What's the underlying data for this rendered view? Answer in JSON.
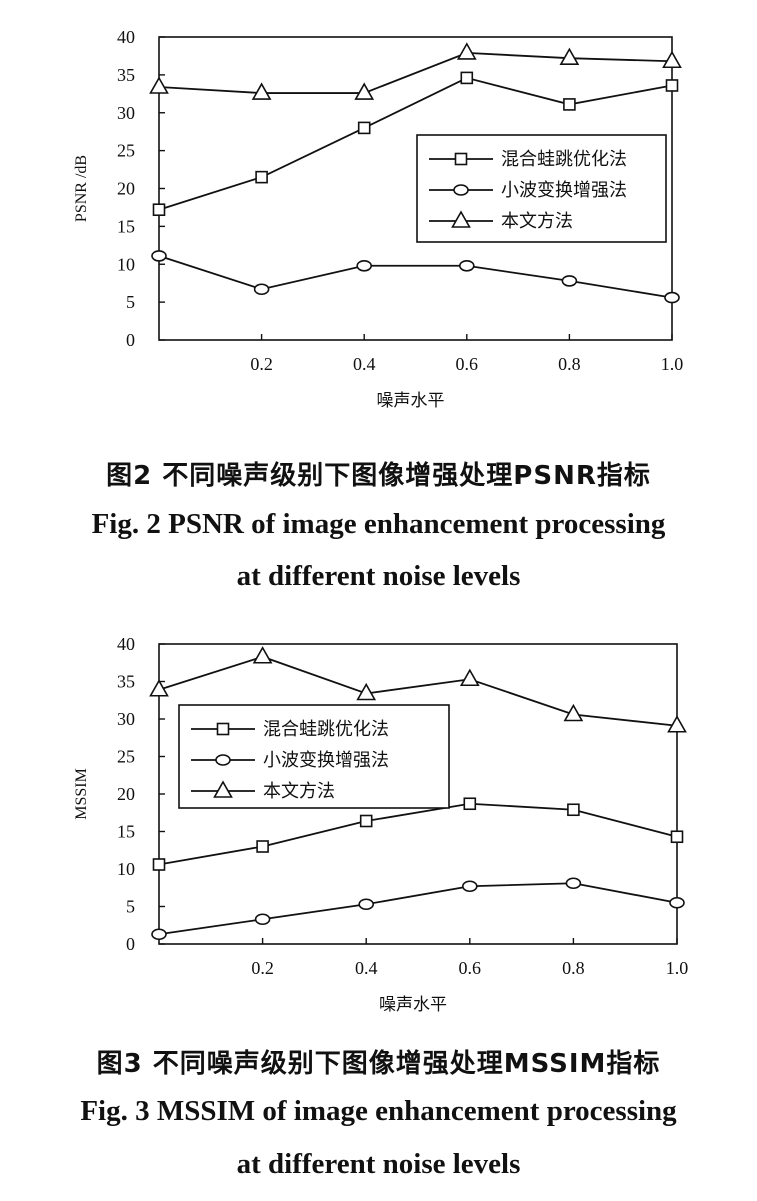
{
  "captions": {
    "fig2_cn": "图2  不同噪声级别下图像增强处理PSNR指标",
    "fig2_en_1": "Fig. 2  PSNR of image enhancement processing",
    "fig2_en_2": "at different noise levels",
    "fig3_cn": "图3  不同噪声级别下图像增强处理MSSIM指标",
    "fig3_en_1": "Fig. 3  MSSIM of image enhancement processing",
    "fig3_en_2": "at different noise levels"
  },
  "chart_data": [
    {
      "type": "line",
      "xlabel": "噪声水平",
      "ylabel": "PSNR /dB",
      "xlim": [
        0,
        1.0
      ],
      "ylim": [
        0,
        40
      ],
      "x_ticks": [
        "0.2",
        "0.4",
        "0.6",
        "0.8",
        "1.0"
      ],
      "y_ticks": [
        "0",
        "5",
        "10",
        "15",
        "20",
        "25",
        "30",
        "35",
        "40"
      ],
      "x": [
        0,
        0.2,
        0.4,
        0.6,
        0.8,
        1.0
      ],
      "legend_position": "right",
      "grid": false,
      "series": [
        {
          "name": "混合蛙跳优化法",
          "marker": "square",
          "values": [
            17.2,
            21.5,
            28.0,
            34.6,
            31.1,
            33.6
          ]
        },
        {
          "name": "小波变换增强法",
          "marker": "circle",
          "values": [
            11.1,
            6.7,
            9.8,
            9.8,
            7.8,
            5.6
          ]
        },
        {
          "name": "本文方法",
          "marker": "triangle",
          "values": [
            33.4,
            32.6,
            32.6,
            37.9,
            37.2,
            36.8
          ]
        }
      ]
    },
    {
      "type": "line",
      "xlabel": "噪声水平",
      "ylabel": "MSSIM",
      "xlim": [
        0,
        1.0
      ],
      "ylim": [
        0,
        40
      ],
      "x_ticks": [
        "0.2",
        "0.4",
        "0.6",
        "0.8",
        "1.0"
      ],
      "y_ticks": [
        "0",
        "5",
        "10",
        "15",
        "20",
        "25",
        "30",
        "35",
        "40"
      ],
      "x": [
        0,
        0.2,
        0.4,
        0.6,
        0.8,
        1.0
      ],
      "legend_position": "left",
      "grid": false,
      "series": [
        {
          "name": "混合蛙跳优化法",
          "marker": "square",
          "values": [
            10.6,
            13.0,
            16.4,
            18.7,
            17.9,
            14.3
          ]
        },
        {
          "name": "小波变换增强法",
          "marker": "circle",
          "values": [
            1.3,
            3.3,
            5.3,
            7.7,
            8.1,
            5.5
          ]
        },
        {
          "name": "本文方法",
          "marker": "triangle",
          "values": [
            33.9,
            38.3,
            33.4,
            35.3,
            30.6,
            29.1
          ]
        }
      ]
    }
  ]
}
